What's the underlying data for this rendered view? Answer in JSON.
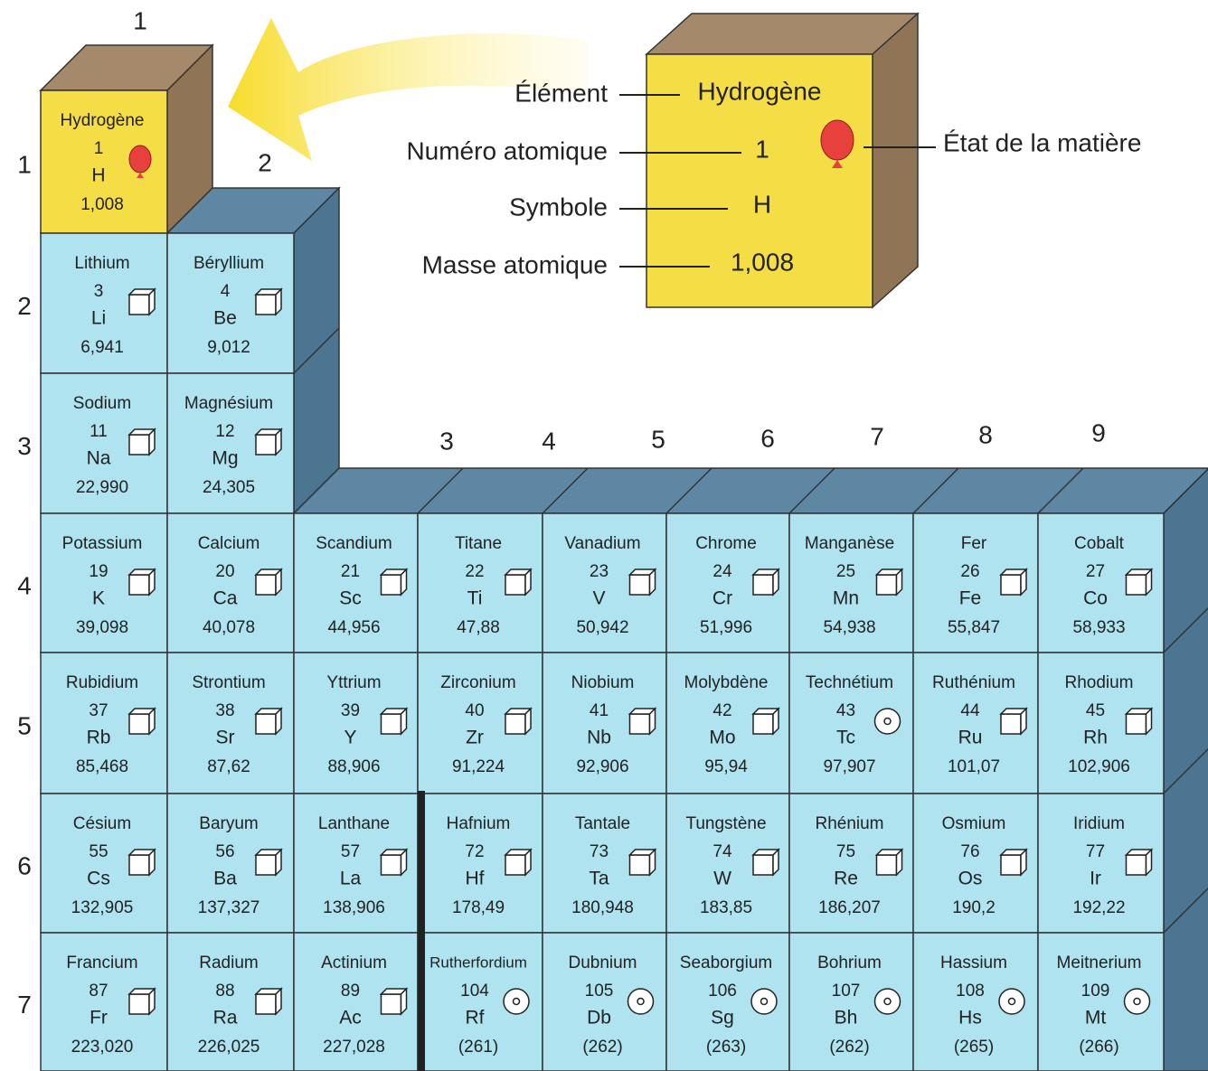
{
  "legend": {
    "labels": {
      "element": "Élément",
      "number": "Numéro atomique",
      "symbol": "Symbole",
      "mass": "Masse atomique",
      "state": "État de la matière"
    },
    "example": {
      "name": "Hydrogène",
      "number": 1,
      "symbol": "H",
      "mass": "1,008"
    }
  },
  "groups": [
    "1",
    "2",
    "3",
    "4",
    "5",
    "6",
    "7",
    "8",
    "9"
  ],
  "periods": [
    {
      "label": "1",
      "elements": [
        {
          "name": "Hydrogène",
          "number": 1,
          "symbol": "H",
          "mass": "1,008",
          "icon": "balloon"
        }
      ]
    },
    {
      "label": "2",
      "elements": [
        {
          "name": "Lithium",
          "number": 3,
          "symbol": "Li",
          "mass": "6,941",
          "icon": "cube"
        },
        {
          "name": "Béryllium",
          "number": 4,
          "symbol": "Be",
          "mass": "9,012",
          "icon": "cube"
        }
      ]
    },
    {
      "label": "3",
      "elements": [
        {
          "name": "Sodium",
          "number": 11,
          "symbol": "Na",
          "mass": "22,990",
          "icon": "cube"
        },
        {
          "name": "Magnésium",
          "number": 12,
          "symbol": "Mg",
          "mass": "24,305",
          "icon": "cube"
        }
      ]
    },
    {
      "label": "4",
      "elements": [
        {
          "name": "Potassium",
          "number": 19,
          "symbol": "K",
          "mass": "39,098",
          "icon": "cube"
        },
        {
          "name": "Calcium",
          "number": 20,
          "symbol": "Ca",
          "mass": "40,078",
          "icon": "cube"
        },
        {
          "name": "Scandium",
          "number": 21,
          "symbol": "Sc",
          "mass": "44,956",
          "icon": "cube"
        },
        {
          "name": "Titane",
          "number": 22,
          "symbol": "Ti",
          "mass": "47,88",
          "icon": "cube"
        },
        {
          "name": "Vanadium",
          "number": 23,
          "symbol": "V",
          "mass": "50,942",
          "icon": "cube"
        },
        {
          "name": "Chrome",
          "number": 24,
          "symbol": "Cr",
          "mass": "51,996",
          "icon": "cube"
        },
        {
          "name": "Manganèse",
          "number": 25,
          "symbol": "Mn",
          "mass": "54,938",
          "icon": "cube"
        },
        {
          "name": "Fer",
          "number": 26,
          "symbol": "Fe",
          "mass": "55,847",
          "icon": "cube"
        },
        {
          "name": "Cobalt",
          "number": 27,
          "symbol": "Co",
          "mass": "58,933",
          "icon": "cube"
        }
      ]
    },
    {
      "label": "5",
      "elements": [
        {
          "name": "Rubidium",
          "number": 37,
          "symbol": "Rb",
          "mass": "85,468",
          "icon": "cube"
        },
        {
          "name": "Strontium",
          "number": 38,
          "symbol": "Sr",
          "mass": "87,62",
          "icon": "cube"
        },
        {
          "name": "Yttrium",
          "number": 39,
          "symbol": "Y",
          "mass": "88,906",
          "icon": "cube"
        },
        {
          "name": "Zirconium",
          "number": 40,
          "symbol": "Zr",
          "mass": "91,224",
          "icon": "cube"
        },
        {
          "name": "Niobium",
          "number": 41,
          "symbol": "Nb",
          "mass": "92,906",
          "icon": "cube"
        },
        {
          "name": "Molybdène",
          "number": 42,
          "symbol": "Mo",
          "mass": "95,94",
          "icon": "cube"
        },
        {
          "name": "Technétium",
          "number": 43,
          "symbol": "Tc",
          "mass": "97,907",
          "icon": "target"
        },
        {
          "name": "Ruthénium",
          "number": 44,
          "symbol": "Ru",
          "mass": "101,07",
          "icon": "cube"
        },
        {
          "name": "Rhodium",
          "number": 45,
          "symbol": "Rh",
          "mass": "102,906",
          "icon": "cube"
        }
      ]
    },
    {
      "label": "6",
      "elements": [
        {
          "name": "Césium",
          "number": 55,
          "symbol": "Cs",
          "mass": "132,905",
          "icon": "cube"
        },
        {
          "name": "Baryum",
          "number": 56,
          "symbol": "Ba",
          "mass": "137,327",
          "icon": "cube"
        },
        {
          "name": "Lanthane",
          "number": 57,
          "symbol": "La",
          "mass": "138,906",
          "icon": "cube"
        },
        {
          "name": "Hafnium",
          "number": 72,
          "symbol": "Hf",
          "mass": "178,49",
          "icon": "cube"
        },
        {
          "name": "Tantale",
          "number": 73,
          "symbol": "Ta",
          "mass": "180,948",
          "icon": "cube"
        },
        {
          "name": "Tungstène",
          "number": 74,
          "symbol": "W",
          "mass": "183,85",
          "icon": "cube"
        },
        {
          "name": "Rhénium",
          "number": 75,
          "symbol": "Re",
          "mass": "186,207",
          "icon": "cube"
        },
        {
          "name": "Osmium",
          "number": 76,
          "symbol": "Os",
          "mass": "190,2",
          "icon": "cube"
        },
        {
          "name": "Iridium",
          "number": 77,
          "symbol": "Ir",
          "mass": "192,22",
          "icon": "cube"
        }
      ]
    },
    {
      "label": "7",
      "elements": [
        {
          "name": "Francium",
          "number": 87,
          "symbol": "Fr",
          "mass": "223,020",
          "icon": "cube"
        },
        {
          "name": "Radium",
          "number": 88,
          "symbol": "Ra",
          "mass": "226,025",
          "icon": "cube"
        },
        {
          "name": "Actinium",
          "number": 89,
          "symbol": "Ac",
          "mass": "227,028",
          "icon": "cube"
        },
        {
          "name": "Rutherfordium",
          "number": 104,
          "symbol": "Rf",
          "mass": "(261)",
          "icon": "target"
        },
        {
          "name": "Dubnium",
          "number": 105,
          "symbol": "Db",
          "mass": "(262)",
          "icon": "target"
        },
        {
          "name": "Seaborgium",
          "number": 106,
          "symbol": "Sg",
          "mass": "(263)",
          "icon": "target"
        },
        {
          "name": "Bohrium",
          "number": 107,
          "symbol": "Bh",
          "mass": "(262)",
          "icon": "target"
        },
        {
          "name": "Hassium",
          "number": 108,
          "symbol": "Hs",
          "mass": "(265)",
          "icon": "target"
        },
        {
          "name": "Meitnerium",
          "number": 109,
          "symbol": "Mt",
          "mass": "(266)",
          "icon": "target"
        }
      ]
    }
  ]
}
